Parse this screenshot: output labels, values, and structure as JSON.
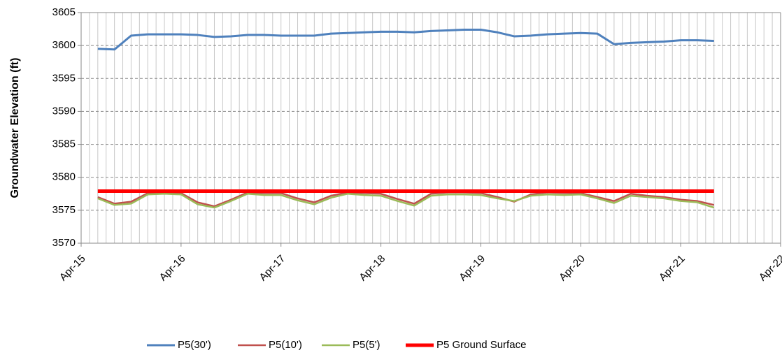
{
  "chart_data": {
    "type": "line",
    "y_label": "Groundwater Elevation (ft)",
    "x": [
      "2015-06",
      "2015-08",
      "2015-10",
      "2015-12",
      "2016-02",
      "2016-04",
      "2016-06",
      "2016-08",
      "2016-10",
      "2016-12",
      "2017-02",
      "2017-04",
      "2017-06",
      "2017-08",
      "2017-10",
      "2017-12",
      "2018-02",
      "2018-04",
      "2018-06",
      "2018-08",
      "2018-10",
      "2018-12",
      "2019-02",
      "2019-04",
      "2019-06",
      "2019-08",
      "2019-10",
      "2019-12",
      "2020-02",
      "2020-04",
      "2020-06",
      "2020-08",
      "2020-10",
      "2020-12",
      "2021-02",
      "2021-04",
      "2021-06",
      "2021-08"
    ],
    "series": [
      {
        "name": "P5(30')",
        "color": "#4f81bd",
        "width": 3,
        "values": [
          3599.5,
          3599.4,
          3601.5,
          3601.7,
          3601.7,
          3601.7,
          3601.6,
          3601.3,
          3601.4,
          3601.6,
          3601.6,
          3601.5,
          3601.5,
          3601.5,
          3601.8,
          3601.9,
          3602.0,
          3602.1,
          3602.1,
          3602.0,
          3602.2,
          3602.3,
          3602.4,
          3602.4,
          3602.0,
          3601.4,
          3601.5,
          3601.7,
          3601.8,
          3601.9,
          3601.8,
          3600.2,
          3600.4,
          3600.5,
          3600.6,
          3600.8,
          3600.8,
          3600.7
        ]
      },
      {
        "name": "P5(10')",
        "color": "#c0504d",
        "width": 2.5,
        "values": [
          3577.0,
          3576.0,
          3576.3,
          3577.6,
          3577.7,
          3577.6,
          3576.2,
          3575.6,
          3576.6,
          3577.7,
          3577.6,
          3577.6,
          3576.8,
          3576.2,
          3577.2,
          3577.7,
          3577.6,
          3577.5,
          3576.7,
          3576.0,
          3577.5,
          3577.7,
          3577.7,
          3577.6,
          3577.0,
          3576.3,
          3577.4,
          3577.7,
          3577.6,
          3577.6,
          3577.0,
          3576.4,
          3577.5,
          3577.2,
          3577.0,
          3576.6,
          3576.4,
          3575.8
        ]
      },
      {
        "name": "P5(5')",
        "color": "#9bbb59",
        "width": 2.5,
        "values": [
          3576.8,
          3575.8,
          3576.0,
          3577.4,
          3577.5,
          3577.4,
          3575.9,
          3575.4,
          3576.4,
          3577.5,
          3577.3,
          3577.3,
          3576.5,
          3575.9,
          3576.9,
          3577.5,
          3577.3,
          3577.2,
          3576.4,
          3575.7,
          3577.2,
          3577.4,
          3577.4,
          3577.3,
          3576.8,
          3576.4,
          3577.2,
          3577.4,
          3577.3,
          3577.4,
          3576.8,
          3576.1,
          3577.2,
          3577.0,
          3576.8,
          3576.4,
          3576.2,
          3575.4
        ]
      },
      {
        "name": "P5 Ground Surface",
        "color": "#ff0000",
        "width": 5,
        "values": [
          3577.9,
          3577.9,
          3577.9,
          3577.9,
          3577.9,
          3577.9,
          3577.9,
          3577.9,
          3577.9,
          3577.9,
          3577.9,
          3577.9,
          3577.9,
          3577.9,
          3577.9,
          3577.9,
          3577.9,
          3577.9,
          3577.9,
          3577.9,
          3577.9,
          3577.9,
          3577.9,
          3577.9,
          3577.9,
          3577.9,
          3577.9,
          3577.9,
          3577.9,
          3577.9,
          3577.9,
          3577.9,
          3577.9,
          3577.9,
          3577.9,
          3577.9,
          3577.9,
          3577.9
        ]
      }
    ],
    "xlim": [
      "2015-04",
      "2022-04"
    ],
    "xticks": [
      {
        "value": "2015-04",
        "label": "Apr-15"
      },
      {
        "value": "2016-04",
        "label": "Apr-16"
      },
      {
        "value": "2017-04",
        "label": "Apr-17"
      },
      {
        "value": "2018-04",
        "label": "Apr-18"
      },
      {
        "value": "2019-04",
        "label": "Apr-19"
      },
      {
        "value": "2020-04",
        "label": "Apr-20"
      },
      {
        "value": "2021-04",
        "label": "Apr-21"
      },
      {
        "value": "2022-04",
        "label": "Apr-22"
      }
    ],
    "ylim": [
      3570,
      3605
    ],
    "yticks": [
      3570,
      3575,
      3580,
      3585,
      3590,
      3595,
      3600,
      3605
    ],
    "grid": true,
    "legend": "bottom"
  }
}
